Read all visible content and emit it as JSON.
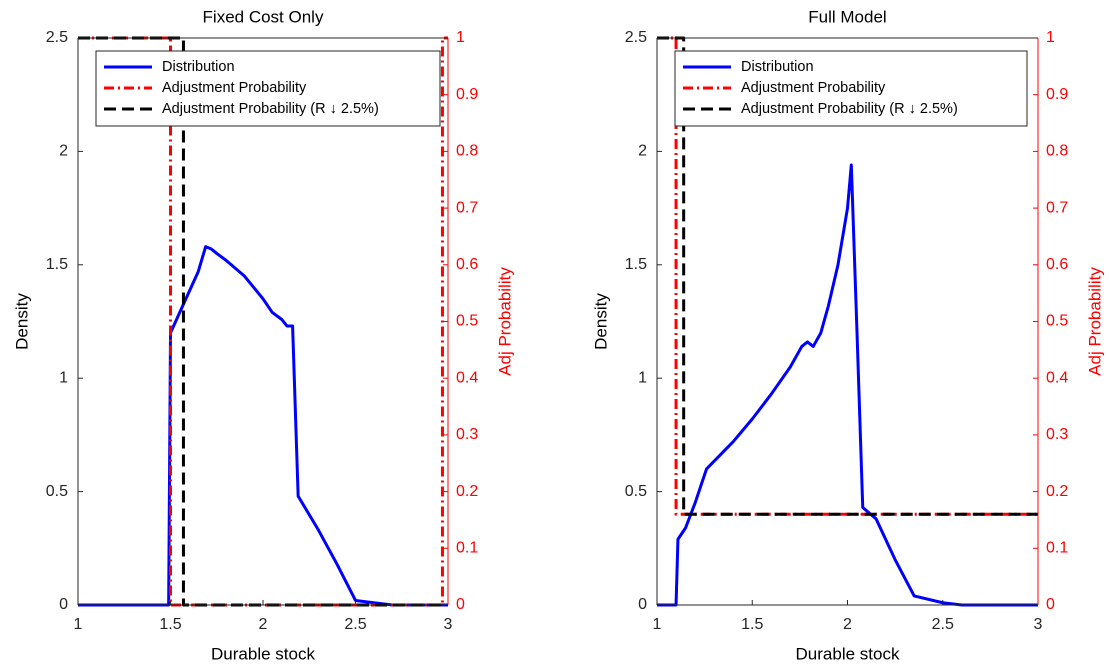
{
  "chart_data": [
    {
      "type": "line",
      "title": "Fixed Cost Only",
      "xlabel": "Durable stock",
      "ylabel": "Density",
      "y2label": "Adj Probability",
      "y2color": "#ff0000",
      "xlim": [
        1,
        3
      ],
      "xticks": [
        1,
        1.5,
        2,
        2.5,
        3
      ],
      "ylim": [
        0,
        2.5
      ],
      "yticks": [
        0,
        0.5,
        1,
        1.5,
        2,
        2.5
      ],
      "y2lim": [
        0,
        1
      ],
      "y2ticks": [
        0,
        0.1,
        0.2,
        0.3,
        0.4,
        0.5,
        0.6,
        0.7,
        0.8,
        0.9,
        1
      ],
      "legend": "upper left",
      "series": [
        {
          "name": "Distribution",
          "color": "#0000ff",
          "linestyle": "solid",
          "x": [
            1,
            1.49,
            1.5,
            1.55,
            1.6,
            1.65,
            1.69,
            1.72,
            1.75,
            1.8,
            1.9,
            2.0,
            2.05,
            2.1,
            2.13,
            2.16,
            2.19,
            2.3,
            2.4,
            2.5,
            2.7,
            3
          ],
          "values": [
            0,
            0,
            1.2,
            1.29,
            1.38,
            1.47,
            1.58,
            1.57,
            1.55,
            1.52,
            1.45,
            1.35,
            1.29,
            1.26,
            1.23,
            1.23,
            0.48,
            0.33,
            0.18,
            0.02,
            0,
            0
          ]
        },
        {
          "name": "Adjustment Probability",
          "color": "#ff0000",
          "linestyle": "dashdot",
          "axis": "y2",
          "x": [
            1,
            1.5,
            1.5,
            2.97,
            2.97,
            3
          ],
          "values": [
            1,
            1,
            0,
            0,
            1,
            1
          ]
        },
        {
          "name": "Adjustment Probability (R ↓ 2.5%)",
          "color": "#000000",
          "linestyle": "dashed",
          "axis": "y2",
          "x": [
            1,
            1.57,
            1.57,
            3
          ],
          "values": [
            1,
            1,
            0,
            0
          ]
        }
      ]
    },
    {
      "type": "line",
      "title": "Full Model",
      "xlabel": "Durable stock",
      "ylabel": "Density",
      "y2label": "Adj Probability",
      "y2color": "#ff0000",
      "xlim": [
        1,
        3
      ],
      "xticks": [
        1,
        1.5,
        2,
        2.5,
        3
      ],
      "ylim": [
        0,
        2.5
      ],
      "yticks": [
        0,
        0.5,
        1,
        1.5,
        2,
        2.5
      ],
      "y2lim": [
        0,
        1
      ],
      "y2ticks": [
        0,
        0.1,
        0.2,
        0.3,
        0.4,
        0.5,
        0.6,
        0.7,
        0.8,
        0.9,
        1
      ],
      "legend": "upper left",
      "series": [
        {
          "name": "Distribution",
          "color": "#0000ff",
          "linestyle": "solid",
          "x": [
            1,
            1.1,
            1.11,
            1.15,
            1.2,
            1.26,
            1.4,
            1.5,
            1.6,
            1.7,
            1.76,
            1.79,
            1.82,
            1.86,
            1.9,
            1.95,
            2.0,
            2.02,
            2.05,
            2.08,
            2.15,
            2.25,
            2.35,
            2.5,
            2.6,
            3
          ],
          "values": [
            0,
            0,
            0.29,
            0.34,
            0.45,
            0.6,
            0.72,
            0.82,
            0.93,
            1.05,
            1.14,
            1.16,
            1.14,
            1.2,
            1.32,
            1.5,
            1.75,
            1.94,
            1.2,
            0.43,
            0.38,
            0.2,
            0.04,
            0.01,
            0,
            0
          ]
        },
        {
          "name": "Adjustment Probability",
          "color": "#ff0000",
          "linestyle": "dashdot",
          "axis": "y2",
          "x": [
            1,
            1.1,
            1.1,
            3
          ],
          "values": [
            1,
            1,
            0.16,
            0.16
          ]
        },
        {
          "name": "Adjustment Probability (R ↓ 2.5%)",
          "color": "#000000",
          "linestyle": "dashed",
          "axis": "y2",
          "x": [
            1,
            1.14,
            1.14,
            3
          ],
          "values": [
            1,
            1,
            0.16,
            0.16
          ]
        }
      ]
    }
  ]
}
